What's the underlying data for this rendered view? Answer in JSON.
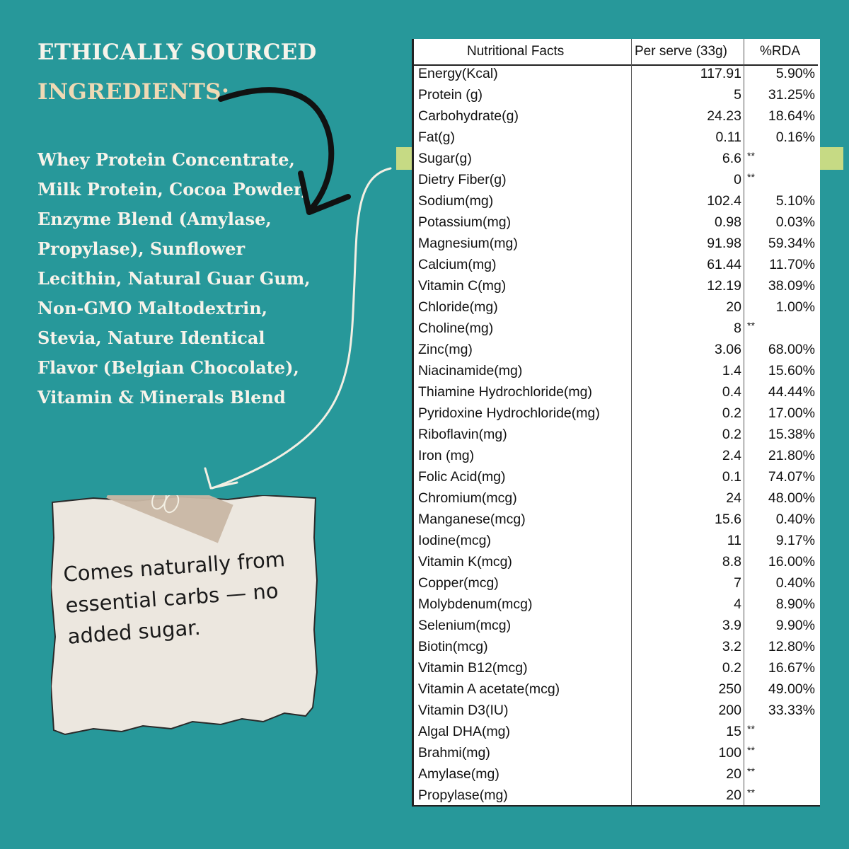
{
  "heading": {
    "line1": "ETHICALLY SOURCED",
    "line2": "INGREDIENTS:"
  },
  "ingredients": "Whey Protein Concentrate, Milk Protein, Cocoa Powder, Enzyme Blend (Amylase, Propylase), Sunflower Lecithin, Natural Guar Gum, Non-GMO Maltodextrin, Stevia, Nature Identical Flavor (Belgian Chocolate), Vitamin & Minerals Blend",
  "note": {
    "text": "Comes naturally from essential carbs — no added sugar."
  },
  "table": {
    "headers": [
      "Nutritional Facts",
      "Per serve (33g)",
      "%RDA"
    ],
    "highlight_row": "Sugar(g)",
    "rows": [
      {
        "name": "Energy(Kcal)",
        "value": "117.91",
        "rda": "5.90%"
      },
      {
        "name": "Protein (g)",
        "value": "5",
        "rda": "31.25%"
      },
      {
        "name": "Carbohydrate(g)",
        "value": "24.23",
        "rda": "18.64%"
      },
      {
        "name": "Fat(g)",
        "value": "0.11",
        "rda": "0.16%"
      },
      {
        "name": "Sugar(g)",
        "value": "6.6",
        "rda": "**"
      },
      {
        "name": "Dietry Fiber(g)",
        "value": "0",
        "rda": "**"
      },
      {
        "name": "Sodium(mg)",
        "value": "102.4",
        "rda": "5.10%"
      },
      {
        "name": "Potassium(mg)",
        "value": "0.98",
        "rda": "0.03%"
      },
      {
        "name": "Magnesium(mg)",
        "value": "91.98",
        "rda": "59.34%"
      },
      {
        "name": "Calcium(mg)",
        "value": "61.44",
        "rda": "11.70%"
      },
      {
        "name": "Vitamin C(mg)",
        "value": "12.19",
        "rda": "38.09%"
      },
      {
        "name": "Chloride(mg)",
        "value": "20",
        "rda": "1.00%"
      },
      {
        "name": "Choline(mg)",
        "value": "8",
        "rda": "**"
      },
      {
        "name": "Zinc(mg)",
        "value": "3.06",
        "rda": "68.00%"
      },
      {
        "name": "Niacinamide(mg)",
        "value": "1.4",
        "rda": "15.60%"
      },
      {
        "name": "Thiamine Hydrochloride(mg)",
        "value": "0.4",
        "rda": "44.44%"
      },
      {
        "name": "Pyridoxine Hydrochloride(mg)",
        "value": "0.2",
        "rda": "17.00%"
      },
      {
        "name": "Riboflavin(mg)",
        "value": "0.2",
        "rda": "15.38%"
      },
      {
        "name": "Iron (mg)",
        "value": "2.4",
        "rda": "21.80%"
      },
      {
        "name": "Folic Acid(mg)",
        "value": "0.1",
        "rda": "74.07%"
      },
      {
        "name": "Chromium(mcg)",
        "value": "24",
        "rda": "48.00%"
      },
      {
        "name": "Manganese(mcg)",
        "value": "15.6",
        "rda": "0.40%"
      },
      {
        "name": "Iodine(mcg)",
        "value": "11",
        "rda": "9.17%"
      },
      {
        "name": "Vitamin K(mcg)",
        "value": "8.8",
        "rda": "16.00%"
      },
      {
        "name": "Copper(mcg)",
        "value": "7",
        "rda": "0.40%"
      },
      {
        "name": "Molybdenum(mcg)",
        "value": "4",
        "rda": "8.90%"
      },
      {
        "name": "Selenium(mcg)",
        "value": "3.9",
        "rda": "9.90%"
      },
      {
        "name": "Biotin(mcg)",
        "value": "3.2",
        "rda": "12.80%"
      },
      {
        "name": "Vitamin B12(mcg)",
        "value": "0.2",
        "rda": "16.67%"
      },
      {
        "name": "Vitamin A acetate(mcg)",
        "value": "250",
        "rda": "49.00%"
      },
      {
        "name": "Vitamin D3(IU)",
        "value": "200",
        "rda": "33.33%"
      },
      {
        "name": "Algal DHA(mg)",
        "value": "15",
        "rda": "**"
      },
      {
        "name": "Brahmi(mg)",
        "value": "100",
        "rda": "**"
      },
      {
        "name": "Amylase(mg)",
        "value": "20",
        "rda": "**"
      },
      {
        "name": "Propylase(mg)",
        "value": "20",
        "rda": "**"
      }
    ]
  },
  "colors": {
    "background": "#27989a",
    "heading": "#f7f3ea",
    "heading_accent": "#efd9b4",
    "note_paper": "#ece7df",
    "tape": "#c9b7a4",
    "highlight": "#f3ed7d"
  }
}
